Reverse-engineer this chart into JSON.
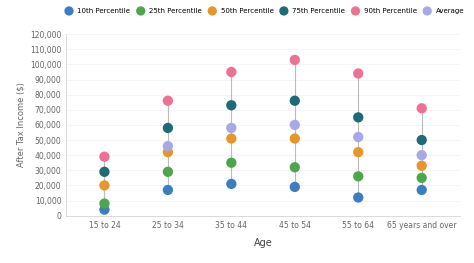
{
  "categories": [
    "15 to 24",
    "25 to 34",
    "35 to 44",
    "45 to 54",
    "55 to 64",
    "65 years and over"
  ],
  "series": {
    "10th Percentile": [
      4000,
      17000,
      21000,
      19000,
      12000,
      17000
    ],
    "25th Percentile": [
      8000,
      29000,
      35000,
      32000,
      26000,
      25000
    ],
    "50th Percentile": [
      20000,
      42000,
      51000,
      51000,
      42000,
      33000
    ],
    "75th Percentile": [
      29000,
      58000,
      73000,
      76000,
      65000,
      50000
    ],
    "90th Percentile": [
      39000,
      76000,
      95000,
      103000,
      94000,
      71000
    ],
    "Average": [
      null,
      46000,
      58000,
      60000,
      52000,
      40000
    ]
  },
  "colors": {
    "10th Percentile": "#3B7EC1",
    "25th Percentile": "#4EA64B",
    "50th Percentile": "#E8962A",
    "75th Percentile": "#1F6B75",
    "90th Percentile": "#F07095",
    "Average": "#A8A8E8"
  },
  "ylabel": "After Tax Income ($)",
  "xlabel": "Age",
  "ylim": [
    0,
    120000
  ],
  "yticks": [
    0,
    10000,
    20000,
    30000,
    40000,
    50000,
    60000,
    70000,
    80000,
    90000,
    100000,
    110000,
    120000
  ],
  "marker_size": 55,
  "line_color": "#BBBBBB",
  "background_color": "#FFFFFF"
}
